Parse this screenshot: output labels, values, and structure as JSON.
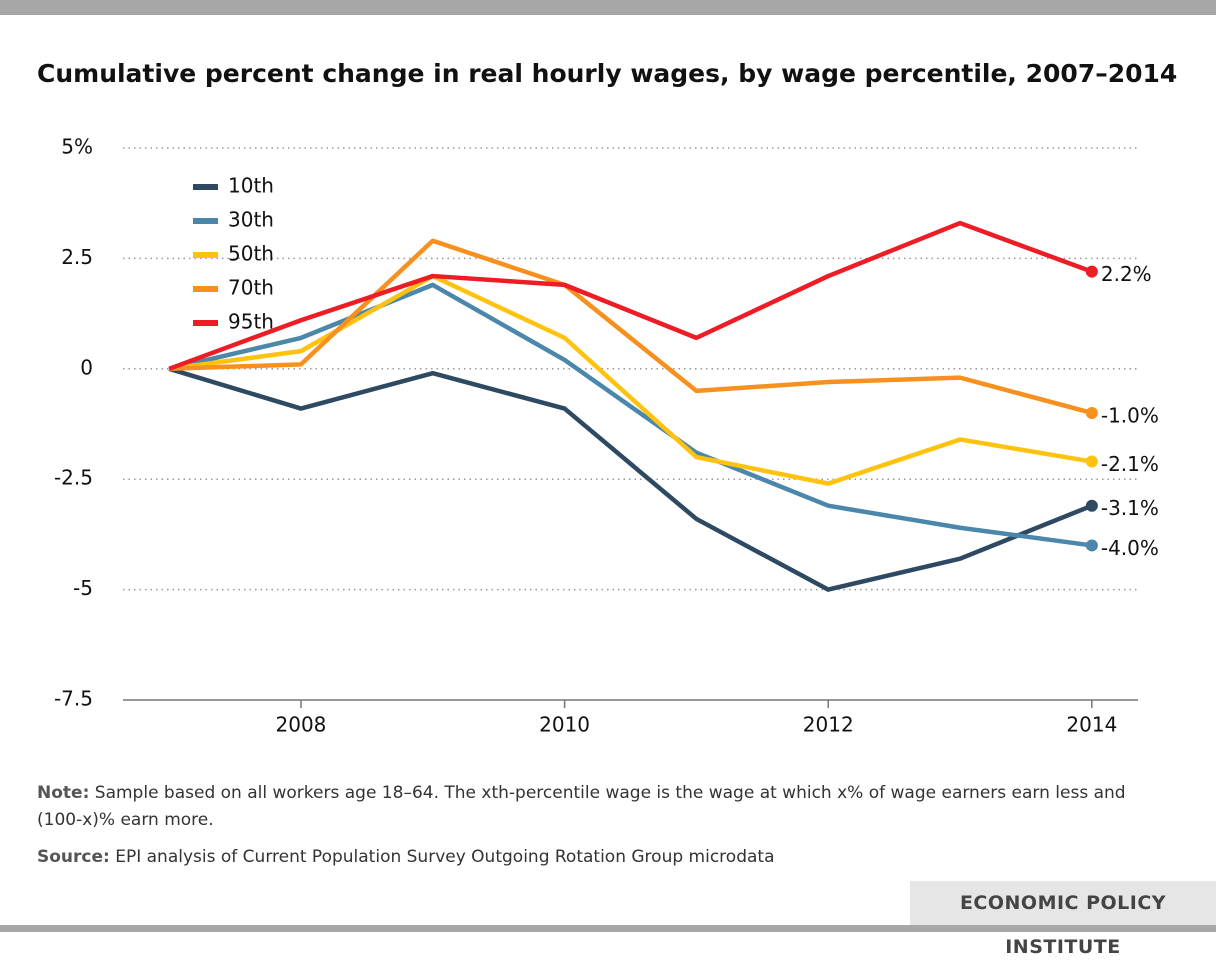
{
  "chart_data": {
    "type": "line",
    "title": "Cumulative percent change in real hourly wages, by wage percentile, 2007–2014",
    "x": [
      2007,
      2008,
      2009,
      2010,
      2011,
      2012,
      2013,
      2014
    ],
    "xlim": [
      2006.65,
      2014.35
    ],
    "xticks": [
      2008,
      2010,
      2012,
      2014
    ],
    "ylim": [
      -7.5,
      5
    ],
    "yticks": [
      -7.5,
      -5,
      -2.5,
      0,
      2.5,
      {
        "value": 5,
        "label": "5%"
      }
    ],
    "grid": true,
    "legend": "upper-left",
    "series": [
      {
        "name": "10th",
        "color": "#2e4a62",
        "values": [
          0,
          -0.9,
          -0.1,
          -0.9,
          -3.4,
          -5.0,
          -4.3,
          -3.1
        ],
        "value_labels": [
          null,
          null,
          null,
          null,
          null,
          null,
          null,
          "-3.1%"
        ]
      },
      {
        "name": "30th",
        "color": "#4a87aa",
        "values": [
          0,
          0.7,
          1.9,
          0.2,
          -1.9,
          -3.1,
          -3.6,
          -4.0
        ],
        "value_labels": [
          null,
          null,
          null,
          null,
          null,
          null,
          null,
          "-4.0%"
        ]
      },
      {
        "name": "50th",
        "color": "#ffc20e",
        "values": [
          0,
          0.4,
          2.1,
          0.7,
          -2.0,
          -2.6,
          -1.6,
          -2.1
        ],
        "value_labels": [
          null,
          null,
          null,
          null,
          null,
          null,
          null,
          "-2.1%"
        ]
      },
      {
        "name": "70th",
        "color": "#f7901e",
        "values": [
          0,
          0.1,
          2.9,
          1.9,
          -0.5,
          -0.3,
          -0.2,
          -1.0
        ],
        "value_labels": [
          null,
          null,
          null,
          null,
          null,
          null,
          null,
          "-1.0%"
        ]
      },
      {
        "name": "95th",
        "color": "#ee1c25",
        "values": [
          0,
          1.1,
          2.1,
          1.9,
          0.7,
          2.1,
          3.3,
          2.2
        ],
        "value_labels": [
          null,
          null,
          null,
          null,
          null,
          null,
          null,
          "2.2%"
        ]
      }
    ]
  },
  "notes": {
    "note_label": "Note:",
    "note": "Sample based on all workers age 18–64. The xth-percentile wage is the wage at which x% of wage earners earn less and (100-x)% earn more.",
    "source_label": "Source:",
    "source": "EPI analysis of Current Population Survey Outgoing Rotation Group microdata"
  },
  "footer": {
    "brand": "ECONOMIC POLICY INSTITUTE"
  }
}
